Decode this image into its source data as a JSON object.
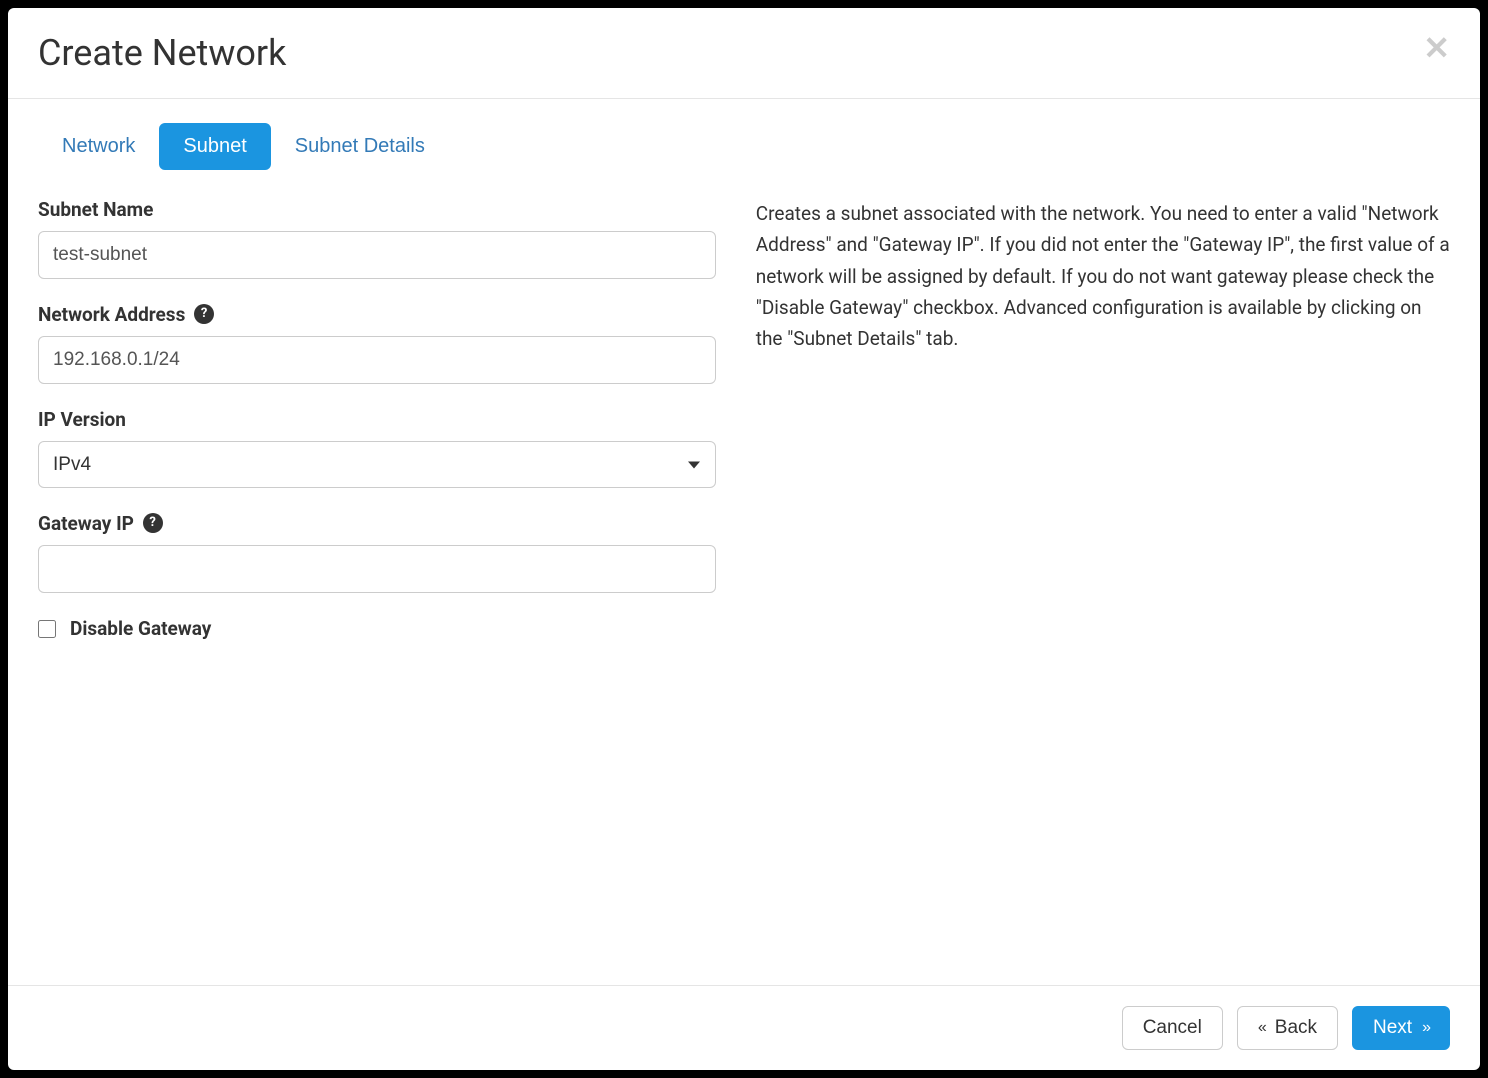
{
  "modal": {
    "title": "Create Network"
  },
  "tabs": {
    "network": "Network",
    "subnet": "Subnet",
    "subnet_details": "Subnet Details"
  },
  "form": {
    "subnet_name": {
      "label": "Subnet Name",
      "value": "test-subnet"
    },
    "network_address": {
      "label": "Network Address",
      "value": "192.168.0.1/24"
    },
    "ip_version": {
      "label": "IP Version",
      "value": "IPv4"
    },
    "gateway_ip": {
      "label": "Gateway IP",
      "value": ""
    },
    "disable_gateway": {
      "label": "Disable Gateway",
      "checked": false
    }
  },
  "help": {
    "text": "Creates a subnet associated with the network. You need to enter a valid \"Network Address\" and \"Gateway IP\". If you did not enter the \"Gateway IP\", the first value of a network will be assigned by default. If you do not want gateway please check the \"Disable Gateway\" checkbox. Advanced configuration is available by clicking on the \"Subnet Details\" tab."
  },
  "footer": {
    "cancel": "Cancel",
    "back": "Back",
    "next": "Next"
  },
  "colors": {
    "primary": "#1b95e0",
    "link": "#337ab7",
    "text": "#333333",
    "border": "#cccccc",
    "divider": "#e5e5e5",
    "close_icon": "#cccccc",
    "background": "#ffffff"
  }
}
